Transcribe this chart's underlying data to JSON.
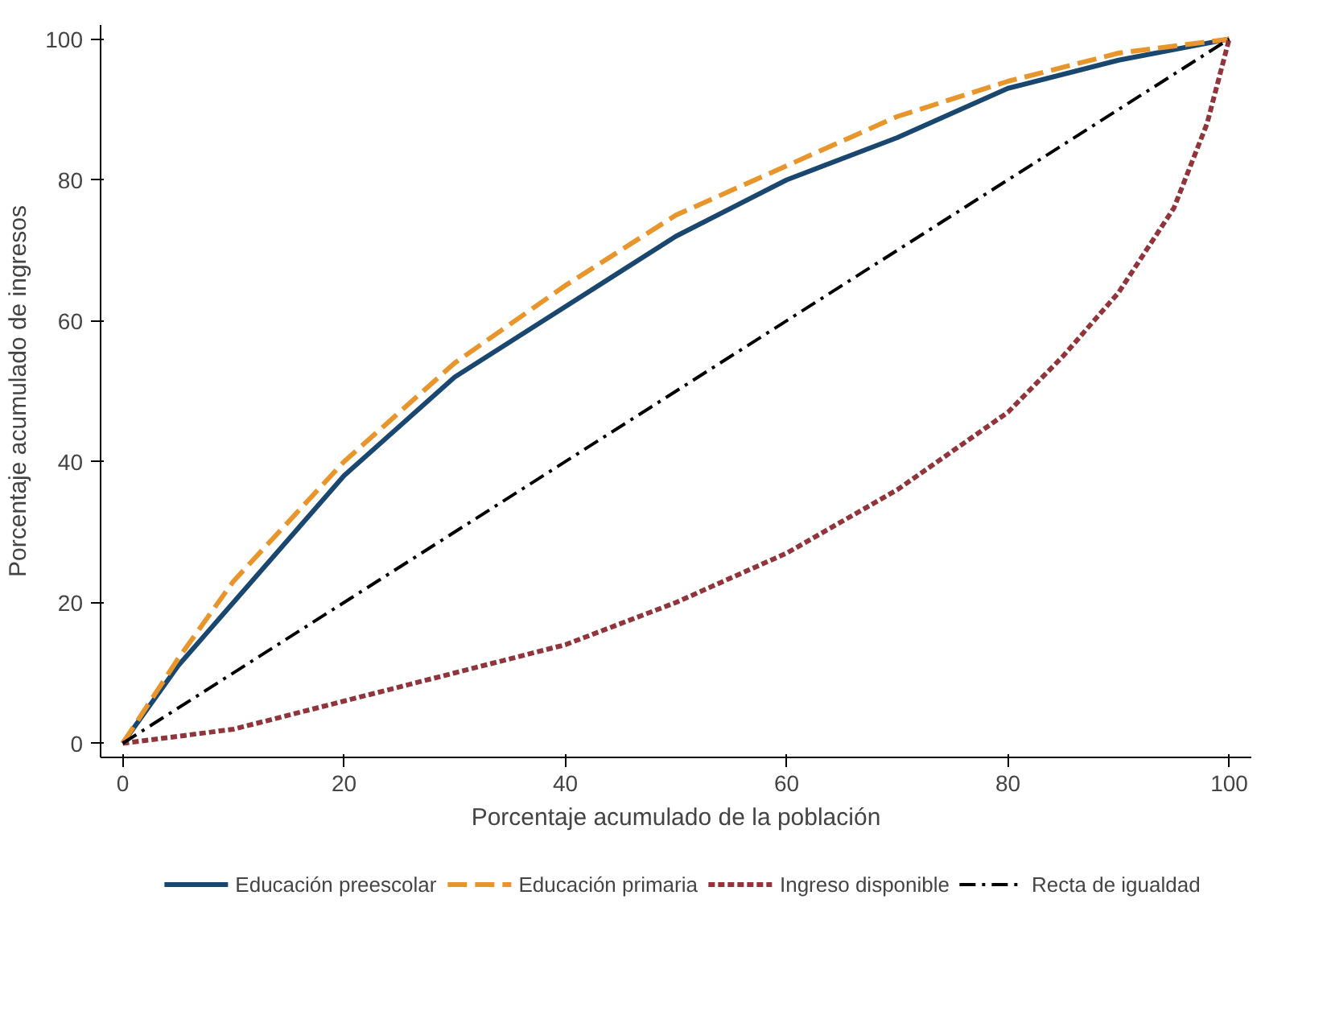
{
  "chart_data": {
    "type": "line",
    "xlabel": "Porcentaje acumulado de la población",
    "ylabel": "Porcentaje acumulado de ingresos",
    "x": [
      0,
      5,
      10,
      20,
      30,
      40,
      50,
      60,
      70,
      80,
      90,
      100
    ],
    "series": [
      {
        "name": "Educación preescolar",
        "color": "#1a476f",
        "line_style": "solid",
        "values": [
          0,
          11,
          20,
          38,
          52,
          62,
          72,
          80,
          86,
          93,
          97,
          100
        ]
      },
      {
        "name": "Educación primaria",
        "color": "#e8952b",
        "line_style": "dashed",
        "values": [
          0,
          12,
          23,
          40,
          54,
          65,
          75,
          82,
          89,
          94,
          98,
          100
        ]
      },
      {
        "name": "Ingreso disponible",
        "color": "#90353b",
        "line_style": "dotted",
        "x": [
          0,
          10,
          20,
          30,
          40,
          50,
          60,
          70,
          80,
          85,
          90,
          95,
          98,
          100
        ],
        "values": [
          0,
          2,
          6,
          10,
          14,
          20,
          27,
          36,
          47,
          55,
          64,
          76,
          88,
          100
        ]
      },
      {
        "name": "Recta de igualdad",
        "color": "#000000",
        "line_style": "dashdot",
        "x": [
          0,
          100
        ],
        "values": [
          0,
          100
        ]
      }
    ],
    "xlim": [
      -2,
      102
    ],
    "ylim": [
      -2,
      102
    ],
    "xticks": [
      0,
      20,
      40,
      60,
      80,
      100
    ],
    "yticks": [
      0,
      20,
      40,
      60,
      80,
      100
    ],
    "grid": false,
    "legend": "bottom"
  }
}
